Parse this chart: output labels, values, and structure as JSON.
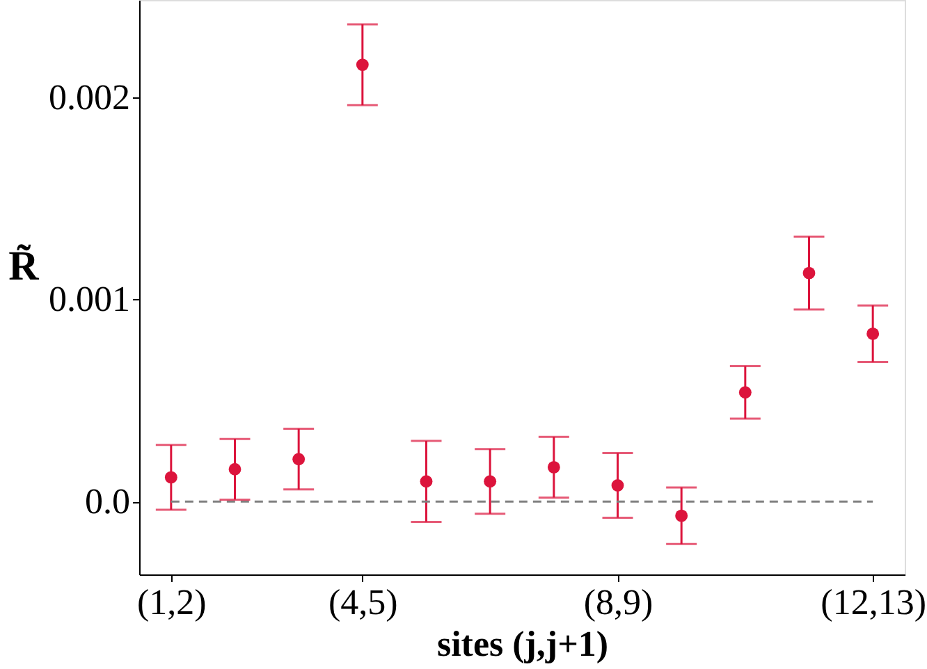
{
  "chart_data": {
    "type": "scatter",
    "xlabel": "sites (j,j+1)",
    "ylabel": "R̃",
    "categories": [
      "(1,2)",
      null,
      null,
      "(4,5)",
      null,
      null,
      null,
      "(8,9)",
      null,
      null,
      null,
      "(12,13)"
    ],
    "series": [
      {
        "color": "#dc143c",
        "values": [
          0.00012,
          0.00016,
          0.00021,
          0.00216,
          0.0001,
          0.0001,
          0.00017,
          8e-05,
          -7e-05,
          0.00054,
          0.00113,
          0.00083
        ],
        "errors": [
          0.00016,
          0.00015,
          0.00015,
          0.0002,
          0.0002,
          0.00016,
          0.00015,
          0.00016,
          0.00014,
          0.00013,
          0.00018,
          0.00014
        ]
      }
    ],
    "ylim": [
      -0.00036,
      0.00248
    ],
    "yticks": [
      {
        "value": 0,
        "label": "0.0"
      },
      0.001,
      0.002
    ],
    "ref_lines": [
      {
        "axis": "y",
        "value": 0,
        "color": "#808080",
        "line_style": "dashed"
      }
    ],
    "marker": "circle",
    "grid": false
  }
}
